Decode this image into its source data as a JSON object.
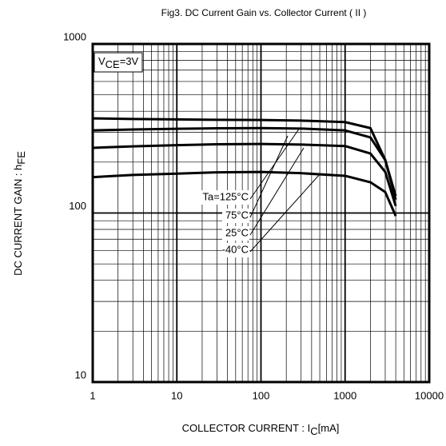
{
  "chart_data": {
    "type": "line",
    "title": "Fig3. DC Current Gain vs. Collector Current ( II )",
    "xlabel": "COLLECTOR CURRENT : I",
    "xlabel_sub": "C",
    "xlabel_unit": "[mA]",
    "ylabel": "DC CURRENT GAIN : h",
    "ylabel_sub": "FE",
    "condition": "V",
    "condition_sub": "CE",
    "condition_value": "=3V",
    "x": [
      1,
      3,
      10,
      30,
      100,
      300,
      1000,
      2000,
      3000,
      4000
    ],
    "series": [
      {
        "name": "Ta=125°C",
        "color": "#000000",
        "values": [
          363,
          360,
          358,
          356,
          355,
          352,
          345,
          318,
          206,
          126
        ]
      },
      {
        "name": "75°C",
        "color": "#000000",
        "values": [
          308,
          312,
          315,
          317,
          318,
          316,
          308,
          280,
          206,
          120
        ]
      },
      {
        "name": "25°C",
        "color": "#000000",
        "values": [
          243,
          248,
          252,
          255,
          256,
          254,
          249,
          225,
          175,
          110
        ]
      },
      {
        "name": "-40°C",
        "color": "#000000",
        "values": [
          163,
          168,
          171,
          174,
          175,
          172,
          166,
          152,
          133,
          96
        ]
      }
    ],
    "xlim": [
      1,
      10000
    ],
    "ylim": [
      10,
      1000
    ],
    "xticks": [
      1,
      10,
      100,
      1000,
      10000
    ],
    "yticks": [
      10,
      100,
      1000
    ],
    "xscale": "log",
    "yscale": "log",
    "grid": true,
    "minor_grid": true
  }
}
